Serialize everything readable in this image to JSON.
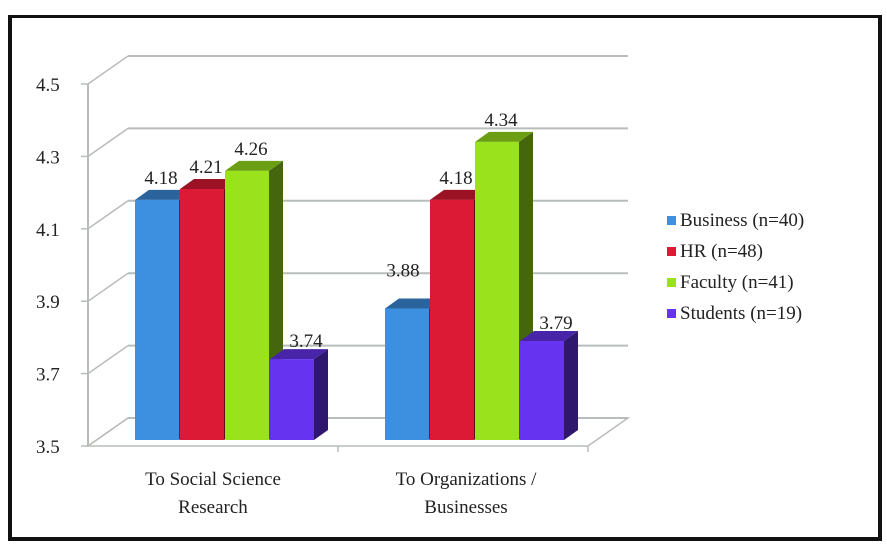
{
  "chart_data": {
    "type": "bar",
    "style": "3d-clustered-column",
    "title": "",
    "xlabel": "",
    "ylabel": "",
    "ylim": [
      3.5,
      4.5
    ],
    "yticks": [
      "3.5",
      "3.7",
      "3.9",
      "4.1",
      "4.3",
      "4.5"
    ],
    "grid": true,
    "legend_position": "right",
    "categories": [
      "To Social Science Research",
      "To Organizations / Businesses"
    ],
    "category_lines": [
      [
        "To Social Science",
        "Research"
      ],
      [
        "To Organizations /",
        "Businesses"
      ]
    ],
    "series": [
      {
        "name": "Business (n=40)",
        "color": "#3d8fe0",
        "values": [
          4.18,
          3.88
        ],
        "labels": [
          "4.18",
          "3.88"
        ]
      },
      {
        "name": "HR (n=48)",
        "color": "#dd1a35",
        "values": [
          4.21,
          4.18
        ],
        "labels": [
          "4.21",
          "4.18"
        ]
      },
      {
        "name": "Faculty (n=41)",
        "color": "#9ae21c",
        "values": [
          4.26,
          4.34
        ],
        "labels": [
          "4.26",
          "4.34"
        ]
      },
      {
        "name": "Students (n=19)",
        "color": "#6633f0",
        "values": [
          3.74,
          3.79
        ],
        "labels": [
          "3.74",
          "3.79"
        ]
      }
    ]
  }
}
